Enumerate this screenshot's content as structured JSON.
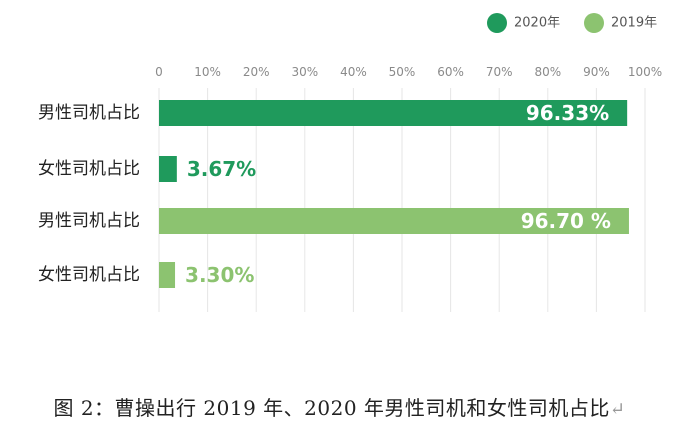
{
  "chart_data": {
    "type": "bar",
    "orientation": "horizontal",
    "categories": [
      "男性司机占比",
      "女性司机占比",
      "男性司机占比",
      "女性司机占比"
    ],
    "values": [
      96.33,
      3.67,
      96.7,
      3.3
    ],
    "data_labels": [
      "96.33%",
      "3.67%",
      "96.70 %",
      "3.30%"
    ],
    "bar_series": [
      0,
      0,
      1,
      1
    ],
    "series": [
      {
        "name": "2020年",
        "color": "#1f9a5c"
      },
      {
        "name": "2019年",
        "color": "#8cc370"
      }
    ],
    "x_ticks": [
      "0",
      "10%",
      "20%",
      "30%",
      "40%",
      "50%",
      "60%",
      "70%",
      "80%",
      "90%",
      "100%"
    ],
    "xlim": [
      0,
      100
    ],
    "grid": true,
    "legend_position": "top-right",
    "title": "",
    "xlabel": "",
    "ylabel": ""
  },
  "caption": {
    "text": "图 2：曹操出行 2019 年、2020 年男性司机和女性司机占比",
    "return_mark": "↵"
  }
}
